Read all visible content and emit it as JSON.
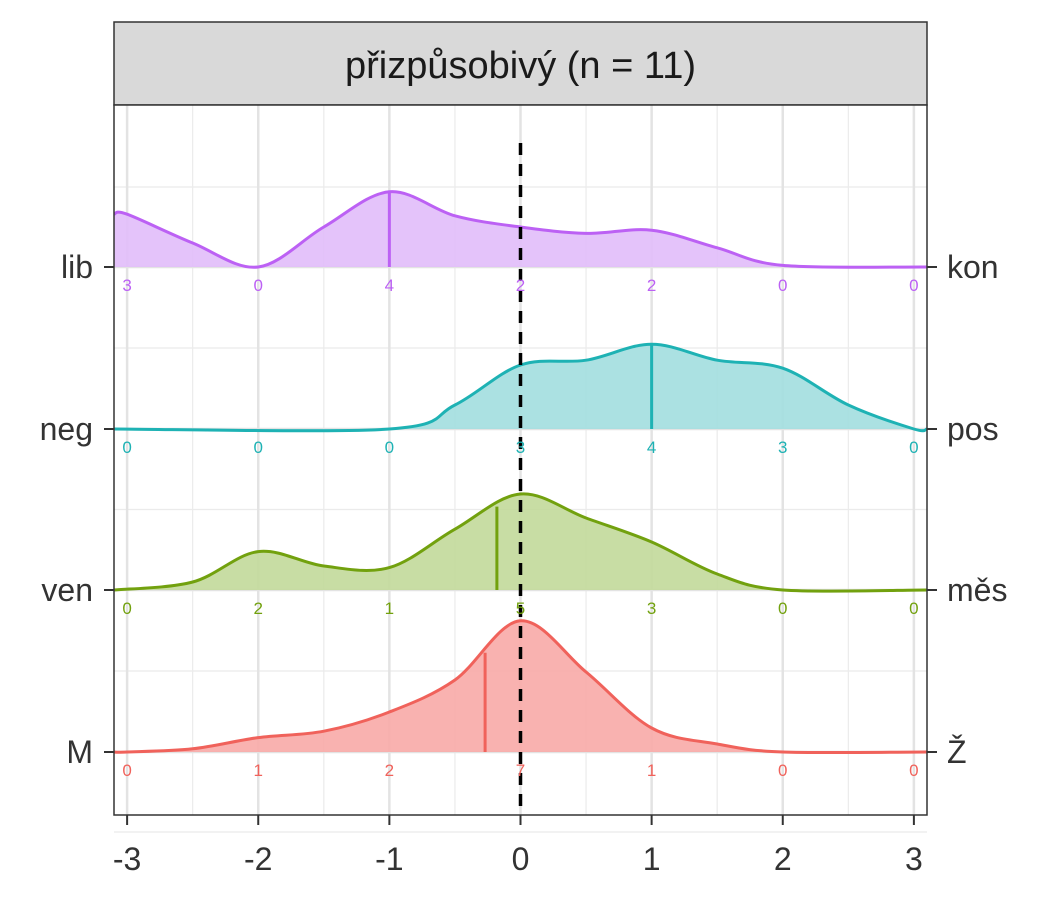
{
  "chart_data": {
    "type": "ridgeline",
    "title": "přizpůsobivý (n = 11)",
    "x_ticks": [
      -3,
      -2,
      -1,
      0,
      1,
      2,
      3
    ],
    "x_tick_labels": [
      "-3",
      "-2",
      "-1",
      "0",
      "1",
      "2",
      "3"
    ],
    "xlim": [
      -3.1,
      3.1
    ],
    "reference_line_x": 0,
    "rows": [
      {
        "left_label": "M",
        "right_label": "Ž",
        "color": "#F0625B",
        "fill": "#F8AAA7",
        "counts": [
          0,
          1,
          2,
          7,
          1,
          0,
          0
        ],
        "mean": -0.27,
        "density": [
          [
            -3.1,
            0.0
          ],
          [
            -3.0,
            0.0
          ],
          [
            -2.5,
            0.02
          ],
          [
            -2.0,
            0.09
          ],
          [
            -1.5,
            0.13
          ],
          [
            -1.0,
            0.25
          ],
          [
            -0.5,
            0.45
          ],
          [
            0.0,
            0.82
          ],
          [
            0.5,
            0.5
          ],
          [
            1.0,
            0.15
          ],
          [
            1.5,
            0.05
          ],
          [
            2.0,
            0.0
          ],
          [
            3.1,
            0.0
          ]
        ]
      },
      {
        "left_label": "ven",
        "right_label": "měs",
        "color": "#72A10E",
        "fill": "#C2D99A",
        "counts": [
          0,
          2,
          1,
          5,
          3,
          0,
          0
        ],
        "mean": -0.18,
        "density": [
          [
            -3.1,
            0.0
          ],
          [
            -2.5,
            0.05
          ],
          [
            -2.0,
            0.24
          ],
          [
            -1.5,
            0.15
          ],
          [
            -1.0,
            0.14
          ],
          [
            -0.5,
            0.38
          ],
          [
            0.0,
            0.6
          ],
          [
            0.5,
            0.45
          ],
          [
            1.0,
            0.3
          ],
          [
            1.5,
            0.1
          ],
          [
            2.0,
            0.0
          ],
          [
            3.1,
            0.0
          ]
        ]
      },
      {
        "left_label": "neg",
        "right_label": "pos",
        "color": "#1EB2B4",
        "fill": "#A2DEDF",
        "counts": [
          0,
          0,
          0,
          3,
          4,
          3,
          0
        ],
        "mean": 1.0,
        "density": [
          [
            -3.1,
            0.0
          ],
          [
            -1.0,
            0.0
          ],
          [
            -0.5,
            0.15
          ],
          [
            0.0,
            0.4
          ],
          [
            0.5,
            0.43
          ],
          [
            1.0,
            0.53
          ],
          [
            1.5,
            0.43
          ],
          [
            2.0,
            0.38
          ],
          [
            2.5,
            0.15
          ],
          [
            3.0,
            0.0
          ],
          [
            3.1,
            0.0
          ]
        ]
      },
      {
        "left_label": "lib",
        "right_label": "kon",
        "color": "#BC61F4",
        "fill": "#E1BDFA",
        "counts": [
          3,
          0,
          4,
          2,
          2,
          0,
          0
        ],
        "mean": -1.0,
        "density": [
          [
            -3.1,
            0.33
          ],
          [
            -3.0,
            0.33
          ],
          [
            -2.5,
            0.15
          ],
          [
            -2.0,
            0.0
          ],
          [
            -1.5,
            0.25
          ],
          [
            -1.0,
            0.47
          ],
          [
            -0.5,
            0.32
          ],
          [
            0.0,
            0.25
          ],
          [
            0.5,
            0.21
          ],
          [
            1.0,
            0.23
          ],
          [
            1.5,
            0.12
          ],
          [
            2.0,
            0.01
          ],
          [
            3.1,
            0.0
          ]
        ]
      }
    ]
  }
}
